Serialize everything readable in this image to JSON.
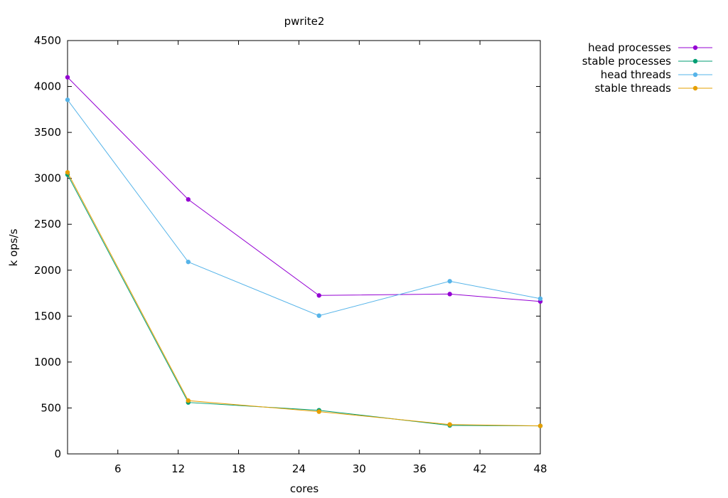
{
  "chart_data": {
    "type": "line",
    "title": "pwrite2",
    "xlabel": "cores",
    "ylabel": "k ops/s",
    "xlim": [
      1,
      48
    ],
    "ylim": [
      0,
      4500
    ],
    "xticks": [
      6,
      12,
      18,
      24,
      30,
      36,
      42,
      48
    ],
    "yticks": [
      0,
      500,
      1000,
      1500,
      2000,
      2500,
      3000,
      3500,
      4000,
      4500
    ],
    "grid": false,
    "legend_position": "top-right, outside plot",
    "series": [
      {
        "name": "head processes",
        "color": "#9400d3",
        "x": [
          1,
          13,
          26,
          39,
          48
        ],
        "y": [
          4100,
          2770,
          1725,
          1740,
          1660
        ]
      },
      {
        "name": "stable processes",
        "color": "#009e73",
        "x": [
          1,
          13,
          26,
          39,
          48
        ],
        "y": [
          3040,
          560,
          475,
          310,
          305
        ]
      },
      {
        "name": "head threads",
        "color": "#56b4e9",
        "x": [
          1,
          13,
          26,
          39,
          48
        ],
        "y": [
          3855,
          2090,
          1505,
          1880,
          1690
        ]
      },
      {
        "name": "stable threads",
        "color": "#e69f00",
        "x": [
          1,
          13,
          26,
          39,
          48
        ],
        "y": [
          3065,
          580,
          460,
          320,
          305
        ]
      }
    ]
  }
}
